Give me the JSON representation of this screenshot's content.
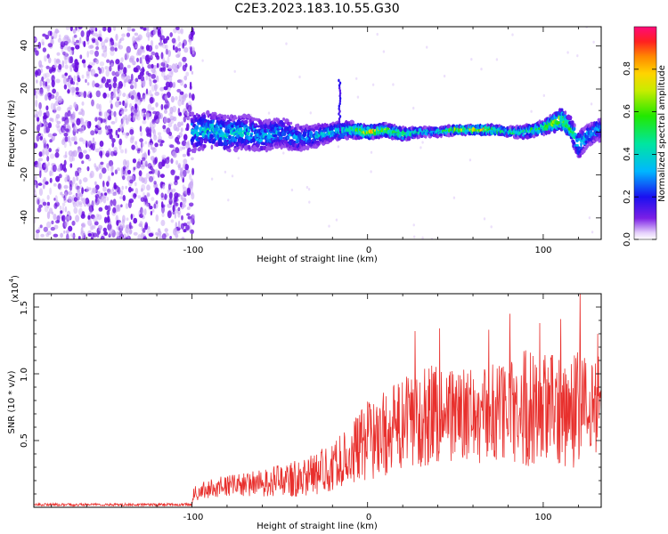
{
  "title": "C2E3.2023.183.10.55.G30",
  "colors": {
    "snr_line": "#e8302d",
    "spec_dense": "#6a0fe0",
    "spec_light": "#c8a6f4"
  },
  "chart_data": [
    {
      "type": "heatmap",
      "name": "spectrogram",
      "xlabel": "Height of straight line (km)",
      "ylabel": "Frequency (Hz)",
      "xlim": [
        -190,
        133
      ],
      "ylim": [
        -50,
        49
      ],
      "xticks": [
        -100,
        0,
        100
      ],
      "yticks": [
        -40,
        -20,
        0,
        20,
        40
      ],
      "xtick_labels": [
        "-100",
        "0",
        "100"
      ],
      "ytick_labels": [
        "-40",
        "-20",
        "0",
        "20",
        "40"
      ],
      "colorbar": {
        "label": "Normalized spectral amplitude",
        "range": [
          0,
          1
        ],
        "ticks": [
          0.0,
          0.2,
          0.4,
          0.6,
          0.8
        ],
        "tick_labels": [
          "0.0",
          "0.2",
          "0.4",
          "0.6",
          "0.8"
        ]
      },
      "ridge_x": [
        -100,
        -90,
        -80,
        -70,
        -60,
        -50,
        -40,
        -30,
        -20,
        -10,
        0,
        10,
        20,
        30,
        40,
        50,
        60,
        70,
        80,
        90,
        100,
        105,
        110,
        115,
        120,
        125,
        130
      ],
      "ridge_center": [
        0,
        1,
        -1,
        0,
        -2,
        0,
        -3,
        -2,
        0,
        1,
        0,
        1,
        -1,
        0,
        0,
        1,
        1,
        1,
        0,
        0,
        2,
        4,
        6,
        2,
        -6,
        -2,
        1
      ],
      "ridge_halfwidth": [
        9,
        8,
        8,
        8,
        7,
        7,
        6,
        5,
        4,
        4,
        3,
        3,
        3,
        2,
        2,
        2,
        2,
        2,
        2,
        3,
        3,
        4,
        5,
        5,
        6,
        5,
        5
      ],
      "ridge_amplitude": [
        0.4,
        0.45,
        0.45,
        0.4,
        0.4,
        0.35,
        0.35,
        0.35,
        0.45,
        0.5,
        0.85,
        0.7,
        0.6,
        0.5,
        0.5,
        0.7,
        0.9,
        0.8,
        0.55,
        0.55,
        0.6,
        0.7,
        0.75,
        0.6,
        0.45,
        0.4,
        0.4
      ],
      "spike": {
        "x": -16,
        "max_freq": 25
      }
    },
    {
      "type": "line",
      "name": "snr",
      "xlabel": "Height of straight line (km)",
      "ylabel": "SNR (10 * v/v)",
      "y_multiplier": "(x10",
      "y_multiplier_exp": "4",
      "y_multiplier_close": ")",
      "xlim": [
        -190,
        133
      ],
      "ylim": [
        0,
        1.6
      ],
      "xticks": [
        -100,
        0,
        100
      ],
      "yticks": [
        0.5,
        1.0,
        1.5
      ],
      "xtick_labels": [
        "-100",
        "0",
        "100"
      ],
      "ytick_labels": [
        "0.5",
        "1.0",
        "1.5"
      ],
      "envelope_x": [
        -190,
        -100,
        -99,
        -90,
        -80,
        -70,
        -60,
        -50,
        -40,
        -30,
        -20,
        -10,
        0,
        10,
        20,
        30,
        40,
        50,
        60,
        70,
        80,
        90,
        100,
        110,
        120,
        130,
        133
      ],
      "envelope_mean": [
        0.02,
        0.02,
        0.1,
        0.14,
        0.16,
        0.17,
        0.18,
        0.2,
        0.22,
        0.25,
        0.3,
        0.4,
        0.5,
        0.55,
        0.62,
        0.68,
        0.72,
        0.7,
        0.68,
        0.7,
        0.72,
        0.75,
        0.74,
        0.72,
        0.74,
        0.75,
        0.75
      ],
      "envelope_amplitude": [
        0.01,
        0.01,
        0.06,
        0.07,
        0.08,
        0.09,
        0.1,
        0.12,
        0.14,
        0.16,
        0.18,
        0.22,
        0.3,
        0.32,
        0.35,
        0.38,
        0.4,
        0.35,
        0.35,
        0.38,
        0.4,
        0.45,
        0.42,
        0.42,
        0.45,
        0.4,
        0.4
      ],
      "peaks": [
        {
          "x": 27,
          "y": 1.32
        },
        {
          "x": 41,
          "y": 1.34
        },
        {
          "x": 69,
          "y": 1.33
        },
        {
          "x": 81,
          "y": 1.45
        },
        {
          "x": 98,
          "y": 1.38
        },
        {
          "x": 110,
          "y": 1.41
        },
        {
          "x": 121,
          "y": 1.62
        },
        {
          "x": 131,
          "y": 1.3
        }
      ]
    }
  ]
}
